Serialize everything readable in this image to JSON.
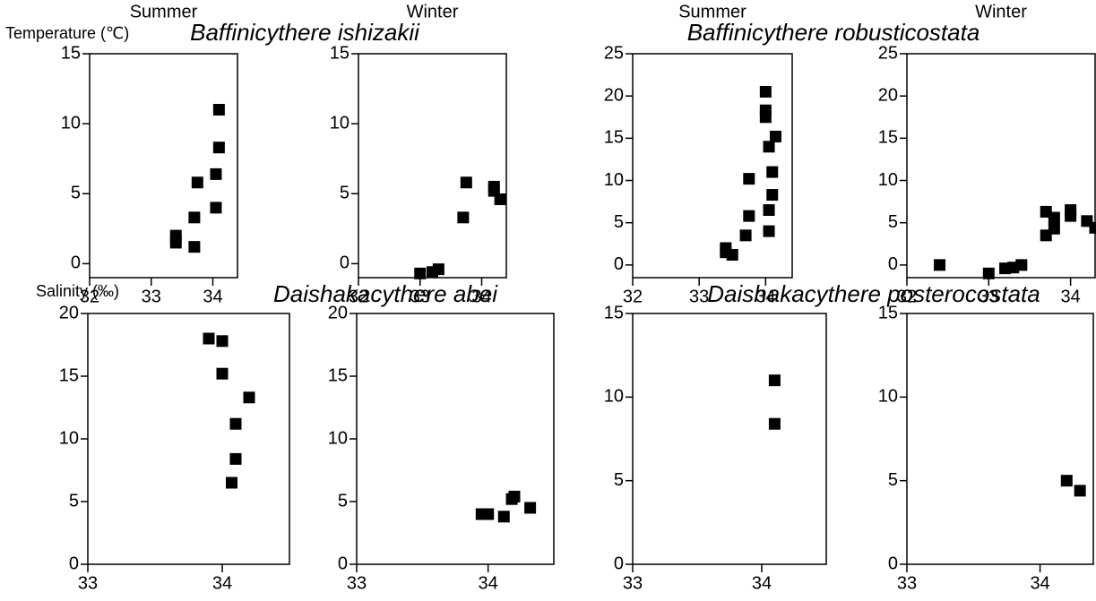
{
  "chart_data": [
    {
      "type": "scatter",
      "title": "Summer",
      "subtitle": "Baffinicythere ishizakii",
      "ylabel": "Temperature (℃)",
      "xlabel": "Salinity (‰)",
      "x": [
        33.4,
        33.4,
        33.7,
        33.7,
        33.75,
        34.05,
        34.05,
        34.1,
        34.1
      ],
      "values": [
        1.5,
        2,
        1.2,
        3.3,
        5.8,
        4,
        6.4,
        8.3,
        11
      ],
      "xlim": [
        32,
        34.4
      ],
      "xticks": [
        32,
        33,
        34
      ],
      "ylim": [
        -1,
        15
      ],
      "yticks": [
        0,
        5,
        10,
        15
      ],
      "color": "#000000"
    },
    {
      "type": "scatter",
      "title": "Winter",
      "x": [
        33,
        33.2,
        33.3,
        33.7,
        33.75,
        34.2,
        34.2,
        34.3
      ],
      "values": [
        -0.7,
        -0.6,
        -0.4,
        3.3,
        5.8,
        5.5,
        5.2,
        4.6
      ],
      "xlim": [
        32,
        34.4
      ],
      "xticks": [
        32,
        33,
        34
      ],
      "ylim": [
        -1,
        15
      ],
      "yticks": [
        0,
        5,
        10,
        15
      ],
      "color": "#000000"
    },
    {
      "type": "scatter",
      "title": "Summer",
      "subtitle": "Baffinicythere robusticostata",
      "x": [
        33.4,
        33.4,
        33.5,
        33.7,
        33.75,
        33.75,
        34,
        34,
        34,
        34.05,
        34.05,
        34.1,
        34.1,
        34.05,
        34.15
      ],
      "values": [
        1.5,
        2,
        1.2,
        3.5,
        5.8,
        10.2,
        17.5,
        18.3,
        20.5,
        4,
        6.5,
        8.3,
        11,
        14,
        15.2
      ],
      "xlim": [
        32,
        34.4
      ],
      "xticks": [
        32,
        33,
        34
      ],
      "ylim": [
        -1.5,
        25
      ],
      "yticks": [
        0,
        5,
        10,
        15,
        20,
        25
      ],
      "color": "#000000"
    },
    {
      "type": "scatter",
      "title": "Winter",
      "x": [
        32.4,
        33,
        33.2,
        33.3,
        33.4,
        33.7,
        33.7,
        33.8,
        33.8,
        34,
        34,
        34.2,
        34.3
      ],
      "values": [
        0,
        -1,
        -0.4,
        -0.3,
        0,
        3.5,
        6.3,
        5.6,
        4.3,
        6.5,
        5.8,
        5.2,
        4.4
      ],
      "xlim": [
        32,
        34.3
      ],
      "xticks": [
        32,
        33,
        34
      ],
      "ylim": [
        -1.5,
        25
      ],
      "yticks": [
        0,
        5,
        10,
        15,
        20,
        25
      ],
      "color": "#000000"
    },
    {
      "type": "scatter",
      "subtitle": "Daishakacythere abei",
      "x": [
        33.9,
        34,
        34,
        34.2,
        34.1,
        34.1,
        34.07
      ],
      "values": [
        18,
        17.8,
        15.2,
        13.3,
        11.2,
        8.4,
        6.5
      ],
      "xlim": [
        33,
        34.5
      ],
      "xticks": [
        33,
        34
      ],
      "ylim": [
        0,
        20
      ],
      "yticks": [
        0,
        5,
        10,
        15,
        20
      ],
      "color": "#000000"
    },
    {
      "type": "scatter",
      "x": [
        33.95,
        34,
        34.12,
        34.18,
        34.2,
        34.32
      ],
      "values": [
        4,
        4,
        3.8,
        5.2,
        5.4,
        4.5
      ],
      "xlim": [
        33,
        34.5
      ],
      "xticks": [
        33,
        34
      ],
      "ylim": [
        0,
        20
      ],
      "yticks": [
        0,
        5,
        10,
        15,
        20
      ],
      "color": "#000000"
    },
    {
      "type": "scatter",
      "subtitle": "Daishakacythere posterocostata",
      "x": [
        34.1,
        34.1
      ],
      "values": [
        11,
        8.4
      ],
      "xlim": [
        33,
        34.5
      ],
      "xticks": [
        33,
        34
      ],
      "ylim": [
        0,
        15
      ],
      "yticks": [
        0,
        5,
        10,
        15
      ],
      "color": "#000000"
    },
    {
      "type": "scatter",
      "x": [
        34.2,
        34.3
      ],
      "values": [
        5,
        4.4
      ],
      "xlim": [
        33,
        34.4
      ],
      "xticks": [
        33,
        34
      ],
      "ylim": [
        0,
        15
      ],
      "yticks": [
        0,
        5,
        10,
        15
      ],
      "color": "#000000"
    }
  ]
}
